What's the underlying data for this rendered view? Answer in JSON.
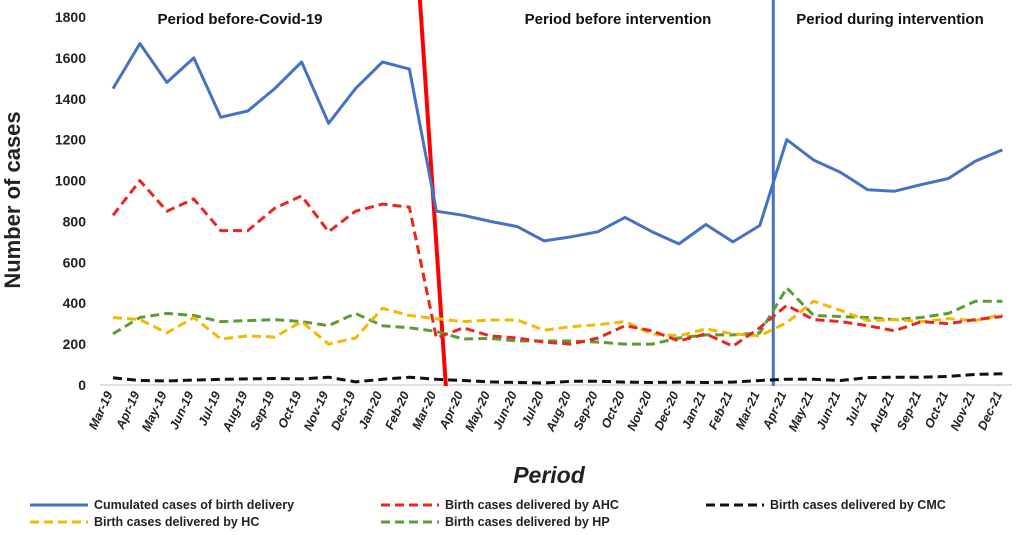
{
  "chart_data": {
    "type": "line",
    "title": "",
    "xlabel": "Period",
    "ylabel": "Number of cases",
    "ylim": [
      0,
      1800
    ],
    "yticks": [
      0,
      200,
      400,
      600,
      800,
      1000,
      1200,
      1400,
      1600,
      1800
    ],
    "grid": false,
    "legend_position": "bottom",
    "categories": [
      "Mar-19",
      "Apr-19",
      "May-19",
      "Jun-19",
      "Jul-19",
      "Aug-19",
      "Sep-19",
      "Oct-19",
      "Nov-19",
      "Dec-19",
      "Jan-20",
      "Feb-20",
      "Mar-20",
      "Apr-20",
      "May-20",
      "Jun-20",
      "Jul-20",
      "Aug-20",
      "Sep-20",
      "Oct-20",
      "Nov-20",
      "Dec-20",
      "Jan-21",
      "Feb-21",
      "Mar-21",
      "Apr-21",
      "May-21",
      "Jun-21",
      "Jul-21",
      "Aug-21",
      "Sep-21",
      "Oct-21",
      "Nov-21",
      "Dec-21"
    ],
    "series": [
      {
        "name": "Cumulated cases of birth delivery",
        "color": "#4472c4",
        "dashed": false,
        "values": [
          1450,
          1670,
          1480,
          1600,
          1310,
          1340,
          1450,
          1580,
          1280,
          1450,
          1580,
          1545,
          850,
          830,
          800,
          775,
          705,
          725,
          750,
          820,
          750,
          690,
          785,
          700,
          780,
          1200,
          1100,
          1040,
          955,
          948,
          980,
          1010,
          1095,
          1150
        ]
      },
      {
        "name": "Birth cases delivered by AHC",
        "color": "#e8281e",
        "dashed": true,
        "values": [
          830,
          1000,
          850,
          910,
          755,
          755,
          865,
          925,
          750,
          850,
          885,
          870,
          230,
          280,
          240,
          230,
          210,
          200,
          230,
          290,
          265,
          215,
          250,
          190,
          280,
          390,
          320,
          310,
          290,
          265,
          310,
          300,
          320,
          335
        ]
      },
      {
        "name": "Birth cases delivered by CMC",
        "color": "#111111",
        "dashed": true,
        "values": [
          35,
          22,
          20,
          24,
          28,
          30,
          32,
          30,
          38,
          15,
          28,
          38,
          28,
          22,
          15,
          12,
          10,
          18,
          18,
          14,
          12,
          14,
          12,
          14,
          22,
          28,
          28,
          22,
          36,
          38,
          38,
          42,
          52,
          55
        ]
      },
      {
        "name": "Birth cases delivered by HC",
        "color": "#f5b800",
        "dashed": true,
        "values": [
          330,
          320,
          255,
          330,
          225,
          240,
          235,
          310,
          200,
          230,
          375,
          340,
          325,
          310,
          318,
          318,
          268,
          285,
          295,
          310,
          250,
          240,
          275,
          250,
          240,
          305,
          410,
          365,
          315,
          320,
          310,
          325,
          315,
          345
        ]
      },
      {
        "name": "Birth cases delivered by HP",
        "color": "#5a9e32",
        "dashed": true,
        "values": [
          250,
          330,
          350,
          340,
          310,
          315,
          320,
          310,
          290,
          350,
          290,
          280,
          262,
          225,
          228,
          215,
          215,
          215,
          210,
          200,
          200,
          230,
          245,
          245,
          255,
          475,
          340,
          335,
          330,
          320,
          330,
          350,
          410,
          410
        ]
      }
    ],
    "periods": [
      {
        "label": "Period before-Covid-19"
      },
      {
        "label": "Period before intervention"
      },
      {
        "label": "Period during  intervention"
      }
    ],
    "divider_colors": [
      "#ff0000",
      "#4472c4"
    ]
  }
}
